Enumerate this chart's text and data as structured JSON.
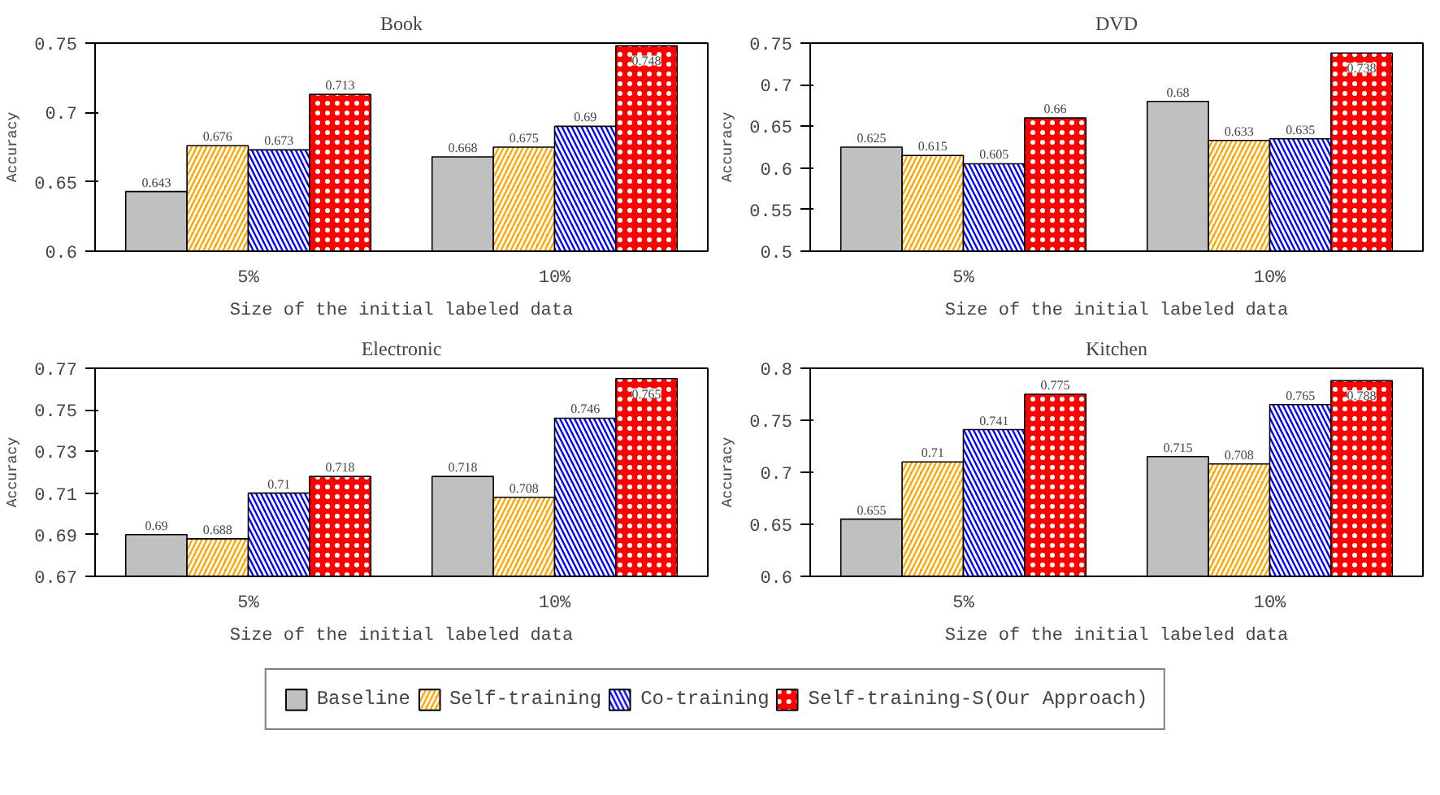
{
  "chart_data": [
    {
      "type": "bar",
      "title": "Book",
      "xlabel": "Size of the initial labeled data",
      "ylabel": "Accuracy",
      "categories": [
        "5%",
        "10%"
      ],
      "ylim": [
        0.6,
        0.75
      ],
      "yticks": [
        0.6,
        0.65,
        0.7,
        0.75
      ],
      "grid": false,
      "data_labels": true,
      "legend": "bottom",
      "series": [
        {
          "name": "Baseline",
          "color": "#c0c0c0",
          "values": [
            0.643,
            0.668
          ]
        },
        {
          "name": "Self-training",
          "color": "#ffa500",
          "values": [
            0.676,
            0.675
          ]
        },
        {
          "name": "Co-training",
          "color": "#0000ff",
          "values": [
            0.673,
            0.69
          ]
        },
        {
          "name": "Self-training-S(Our Approach)",
          "color": "#ff0000",
          "values": [
            0.713,
            0.748
          ]
        }
      ]
    },
    {
      "type": "bar",
      "title": "DVD",
      "xlabel": "Size of the initial labeled data",
      "ylabel": "Accuracy",
      "categories": [
        "5%",
        "10%"
      ],
      "ylim": [
        0.5,
        0.75
      ],
      "yticks": [
        0.5,
        0.55,
        0.6,
        0.65,
        0.7,
        0.75
      ],
      "grid": false,
      "data_labels": true,
      "series": [
        {
          "color": "#c0c0c0",
          "values": [
            0.625,
            0.68
          ]
        },
        {
          "color": "#ffa500",
          "values": [
            0.615,
            0.633
          ]
        },
        {
          "color": "#0000ff",
          "values": [
            0.605,
            0.635
          ]
        },
        {
          "color": "#ff0000",
          "values": [
            0.66,
            0.738
          ]
        }
      ]
    },
    {
      "type": "bar",
      "title": "Electronic",
      "xlabel": "Size of the initial labeled data",
      "ylabel": "Accuracy",
      "categories": [
        "5%",
        "10%"
      ],
      "ylim": [
        0.67,
        0.77
      ],
      "yticks": [
        0.67,
        0.69,
        0.71,
        0.73,
        0.75,
        0.77
      ],
      "grid": false,
      "data_labels": true,
      "series": [
        {
          "color": "#c0c0c0",
          "values": [
            0.69,
            0.718
          ]
        },
        {
          "color": "#ffa500",
          "values": [
            0.688,
            0.708
          ]
        },
        {
          "color": "#0000ff",
          "values": [
            0.71,
            0.746
          ]
        },
        {
          "color": "#ff0000",
          "values": [
            0.718,
            0.765
          ]
        }
      ]
    },
    {
      "type": "bar",
      "title": "Kitchen",
      "xlabel": "Size of the initial labeled data",
      "ylabel": "Accuracy",
      "categories": [
        "5%",
        "10%"
      ],
      "ylim": [
        0.6,
        0.8
      ],
      "yticks": [
        0.6,
        0.65,
        0.7,
        0.75,
        0.8
      ],
      "grid": false,
      "data_labels": true,
      "series": [
        {
          "color": "#c0c0c0",
          "values": [
            0.655,
            0.715
          ]
        },
        {
          "color": "#ffa500",
          "values": [
            0.71,
            0.708
          ]
        },
        {
          "color": "#0000ff",
          "values": [
            0.741,
            0.765
          ]
        },
        {
          "color": "#ff0000",
          "values": [
            0.775,
            0.788
          ]
        }
      ]
    }
  ]
}
